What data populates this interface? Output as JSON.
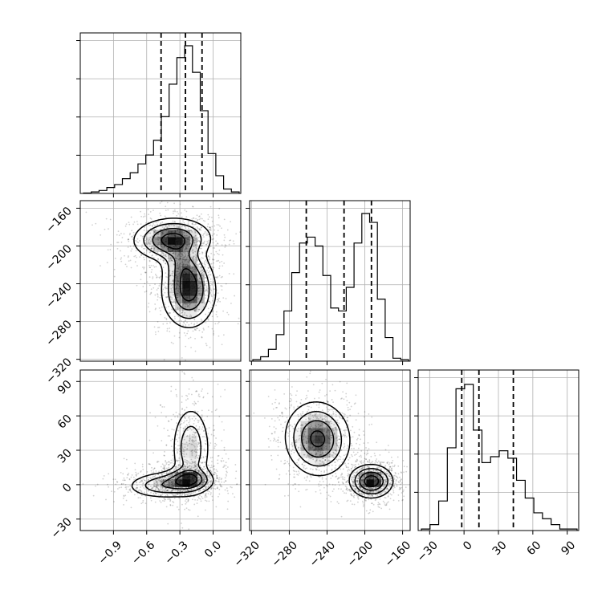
{
  "chart_data": {
    "type": "corner",
    "parameters": [
      {
        "axis_ticks": [
          "−0.9",
          "−0.6",
          "−0.3",
          "0.0"
        ],
        "tick_values": [
          -0.9,
          -0.6,
          -0.3,
          0.0
        ],
        "range": [
          -1.2,
          0.25
        ],
        "quantiles": [
          -0.47,
          -0.25,
          -0.1
        ],
        "histogram": [
          0.003,
          0.01,
          0.02,
          0.04,
          0.06,
          0.1,
          0.14,
          0.2,
          0.26,
          0.36,
          0.52,
          0.74,
          0.92,
          1.0,
          0.82,
          0.56,
          0.27,
          0.12,
          0.03,
          0.01
        ]
      },
      {
        "axis_ticks": [
          "−320",
          "−280",
          "−240",
          "−200",
          "−160"
        ],
        "tick_values": [
          -320,
          -280,
          -240,
          -200,
          -160
        ],
        "range": [
          -322,
          -152
        ],
        "quantiles": [
          -262,
          -222,
          -193
        ],
        "histogram": [
          0.01,
          0.03,
          0.08,
          0.18,
          0.34,
          0.6,
          0.8,
          0.84,
          0.78,
          0.58,
          0.36,
          0.34,
          0.5,
          0.8,
          1.0,
          0.94,
          0.42,
          0.16,
          0.02,
          0.01
        ]
      },
      {
        "axis_ticks": [
          "−30",
          "0",
          "30",
          "60",
          "90"
        ],
        "tick_values": [
          -30,
          0,
          30,
          60,
          90
        ],
        "range": [
          -40,
          100
        ],
        "quantiles": [
          -2,
          13,
          43
        ],
        "histogram": [
          0.01,
          0.04,
          0.2,
          0.56,
          0.96,
          0.99,
          0.68,
          0.46,
          0.5,
          0.54,
          0.49,
          0.34,
          0.22,
          0.12,
          0.08,
          0.04,
          0.01,
          0.01
        ]
      }
    ],
    "pairs": [
      {
        "x_param": 0,
        "y_param": 1,
        "blobs": [
          {
            "cx": -0.37,
            "cy": -193,
            "sx": 0.17,
            "sy": 11,
            "rho": 0.05,
            "w": 1.0
          },
          {
            "cx": -0.22,
            "cy": -248,
            "sx": 0.12,
            "sy": 19,
            "rho": 0.0,
            "w": 1.0
          },
          {
            "cx": -0.27,
            "cy": -220,
            "sx": 0.1,
            "sy": 14,
            "rho": -0.25,
            "w": 0.45
          }
        ],
        "contour_levels": [
          0.12,
          0.3,
          0.55,
          0.82
        ]
      },
      {
        "x_param": 0,
        "y_param": 2,
        "blobs": [
          {
            "cx": -0.4,
            "cy": 0,
            "sx": 0.19,
            "sy": 6,
            "rho": 0.1,
            "w": 0.85
          },
          {
            "cx": -0.22,
            "cy": 5,
            "sx": 0.1,
            "sy": 5,
            "rho": 0.0,
            "w": 1.0
          },
          {
            "cx": -0.2,
            "cy": 32,
            "sx": 0.09,
            "sy": 19,
            "rho": 0.0,
            "w": 0.75
          }
        ],
        "contour_levels": [
          0.12,
          0.3,
          0.55,
          0.82
        ]
      },
      {
        "x_param": 1,
        "y_param": 2,
        "blobs": [
          {
            "cx": -250,
            "cy": 40,
            "sx": 17,
            "sy": 16,
            "rho": -0.05,
            "w": 1.0
          },
          {
            "cx": -193,
            "cy": 3,
            "sx": 11,
            "sy": 7,
            "rho": 0.0,
            "w": 1.15
          }
        ],
        "contour_levels": [
          0.12,
          0.3,
          0.55,
          0.82
        ]
      }
    ],
    "grid": true,
    "colors": {
      "grid": "#b0b0b0",
      "line": "#000000",
      "density": "#000000"
    }
  }
}
